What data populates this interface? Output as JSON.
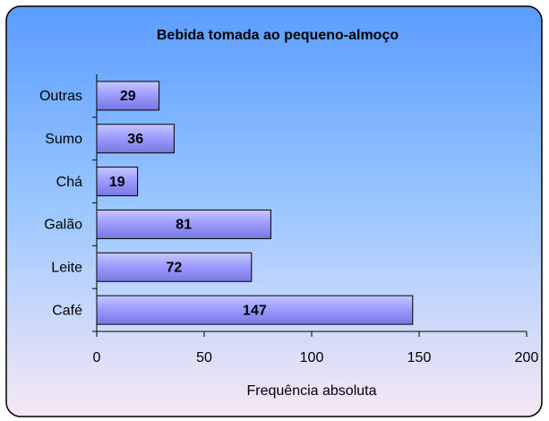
{
  "chart_data": {
    "type": "bar",
    "orientation": "horizontal",
    "title": "Bebida tomada ao pequeno-almoço",
    "x_label": "Frequência absoluta",
    "categories": [
      "Café",
      "Leite",
      "Galão",
      "Chá",
      "Sumo",
      "Outras"
    ],
    "values": [
      147,
      72,
      81,
      19,
      36,
      29
    ],
    "color": "#9999ff",
    "xlim": [
      0,
      200
    ],
    "xticks": [
      0,
      50,
      100,
      150,
      200
    ],
    "grid": false
  }
}
